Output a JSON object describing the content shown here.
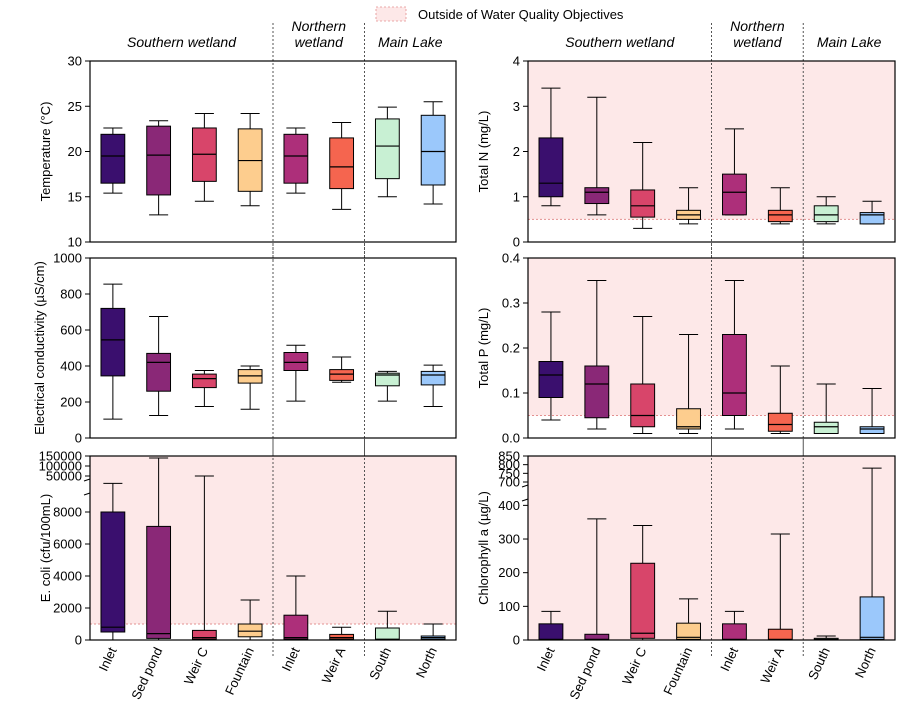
{
  "legend": {
    "label": "Outside of Water Quality Objectives",
    "color": "#fde8e8",
    "border": "#e39090"
  },
  "groups": [
    {
      "key": "southern",
      "label": "Southern wetland"
    },
    {
      "key": "northern",
      "label": "Northern wetland"
    },
    {
      "key": "main",
      "label": "Main Lake"
    }
  ],
  "sites": [
    "Inlet",
    "Sed pond",
    "Weir C",
    "Fountain",
    "Inlet",
    "Weir A",
    "South",
    "North"
  ],
  "site_colors": [
    "#3a0f6e",
    "#8a2877",
    "#d8456a",
    "#fdcd8e",
    "#ad2f7a",
    "#f5654f",
    "#c8f0d3",
    "#9bc8fb"
  ],
  "chart_data": [
    {
      "id": "temperature",
      "type": "box",
      "ylabel": "Temperature (°C)",
      "ylim": [
        10,
        30
      ],
      "ticks": [
        10,
        15,
        20,
        25,
        30
      ],
      "objective": null,
      "boxes": [
        {
          "min": 15.4,
          "q1": 16.5,
          "median": 19.5,
          "q3": 21.9,
          "max": 22.6
        },
        {
          "min": 13.0,
          "q1": 15.2,
          "median": 19.6,
          "q3": 22.8,
          "max": 23.4
        },
        {
          "min": 14.5,
          "q1": 16.7,
          "median": 19.7,
          "q3": 22.6,
          "max": 24.2
        },
        {
          "min": 14.0,
          "q1": 15.6,
          "median": 19.0,
          "q3": 22.5,
          "max": 24.2
        },
        {
          "min": 15.4,
          "q1": 16.5,
          "median": 19.5,
          "q3": 21.9,
          "max": 22.6
        },
        {
          "min": 13.6,
          "q1": 15.9,
          "median": 18.3,
          "q3": 21.5,
          "max": 23.2
        },
        {
          "min": 15.0,
          "q1": 17.0,
          "median": 20.6,
          "q3": 23.6,
          "max": 24.9
        },
        {
          "min": 14.2,
          "q1": 16.3,
          "median": 20.0,
          "q3": 24.0,
          "max": 25.5
        }
      ]
    },
    {
      "id": "total_n",
      "type": "box",
      "ylabel": "Total N (mg/L)",
      "ylim": [
        0,
        4
      ],
      "ticks": [
        0,
        1,
        2,
        3,
        4
      ],
      "objective": 0.5,
      "boxes": [
        {
          "min": 0.8,
          "q1": 1.0,
          "median": 1.3,
          "q3": 2.3,
          "max": 3.4
        },
        {
          "min": 0.6,
          "q1": 0.85,
          "median": 1.1,
          "q3": 1.2,
          "max": 3.2
        },
        {
          "min": 0.3,
          "q1": 0.55,
          "median": 0.8,
          "q3": 1.15,
          "max": 2.2
        },
        {
          "min": 0.4,
          "q1": 0.5,
          "median": 0.6,
          "q3": 0.7,
          "max": 1.2
        },
        {
          "min": 0.6,
          "q1": 0.6,
          "median": 1.1,
          "q3": 1.5,
          "max": 2.5
        },
        {
          "min": 0.4,
          "q1": 0.45,
          "median": 0.6,
          "q3": 0.7,
          "max": 1.2
        },
        {
          "min": 0.4,
          "q1": 0.45,
          "median": 0.6,
          "q3": 0.8,
          "max": 1.0
        },
        {
          "min": 0.4,
          "q1": 0.4,
          "median": 0.6,
          "q3": 0.65,
          "max": 0.9
        }
      ]
    },
    {
      "id": "conductivity",
      "type": "box",
      "ylabel": "Electrical conductivity (µS/cm)",
      "ylim": [
        0,
        1000
      ],
      "ticks": [
        0,
        200,
        400,
        600,
        800,
        1000
      ],
      "objective": null,
      "boxes": [
        {
          "min": 105,
          "q1": 345,
          "median": 545,
          "q3": 720,
          "max": 855
        },
        {
          "min": 125,
          "q1": 260,
          "median": 420,
          "q3": 470,
          "max": 675
        },
        {
          "min": 175,
          "q1": 280,
          "median": 330,
          "q3": 355,
          "max": 375
        },
        {
          "min": 160,
          "q1": 305,
          "median": 345,
          "q3": 380,
          "max": 400
        },
        {
          "min": 205,
          "q1": 375,
          "median": 420,
          "q3": 475,
          "max": 515
        },
        {
          "min": 310,
          "q1": 320,
          "median": 355,
          "q3": 380,
          "max": 450
        },
        {
          "min": 205,
          "q1": 290,
          "median": 350,
          "q3": 360,
          "max": 370
        },
        {
          "min": 175,
          "q1": 295,
          "median": 350,
          "q3": 370,
          "max": 405
        }
      ]
    },
    {
      "id": "total_p",
      "type": "box",
      "ylabel": "Total P (mg/L)",
      "ylim": [
        0,
        0.4
      ],
      "ticks": [
        0.0,
        0.1,
        0.2,
        0.3,
        0.4
      ],
      "objective": 0.05,
      "boxes": [
        {
          "min": 0.04,
          "q1": 0.09,
          "median": 0.14,
          "q3": 0.17,
          "max": 0.28
        },
        {
          "min": 0.02,
          "q1": 0.045,
          "median": 0.12,
          "q3": 0.16,
          "max": 0.35
        },
        {
          "min": 0.01,
          "q1": 0.025,
          "median": 0.05,
          "q3": 0.12,
          "max": 0.27
        },
        {
          "min": 0.01,
          "q1": 0.02,
          "median": 0.025,
          "q3": 0.065,
          "max": 0.23
        },
        {
          "min": 0.02,
          "q1": 0.05,
          "median": 0.1,
          "q3": 0.23,
          "max": 0.35
        },
        {
          "min": 0.01,
          "q1": 0.015,
          "median": 0.03,
          "q3": 0.055,
          "max": 0.16
        },
        {
          "min": 0.01,
          "q1": 0.01,
          "median": 0.025,
          "q3": 0.035,
          "max": 0.12
        },
        {
          "min": 0.01,
          "q1": 0.01,
          "median": 0.02,
          "q3": 0.025,
          "max": 0.11
        }
      ]
    },
    {
      "id": "ecoli",
      "type": "box",
      "ylabel": "E. coli (cfu/100mL)",
      "ylim": [
        0,
        150000
      ],
      "objective": 1000,
      "break": {
        "lower": [
          0,
          9000
        ],
        "upper_ticks": [
          50000,
          100000,
          150000
        ]
      },
      "ticks": [
        0,
        2000,
        4000,
        6000,
        8000,
        50000,
        100000,
        150000
      ],
      "boxes": [
        {
          "min": 0,
          "q1": 500,
          "median": 800,
          "q3": 8000,
          "max": 35000
        },
        {
          "min": 0,
          "q1": 100,
          "median": 400,
          "q3": 7100,
          "max": 140000
        },
        {
          "min": 0,
          "q1": 50,
          "median": 150,
          "q3": 600,
          "max": 50000
        },
        {
          "min": 0,
          "q1": 200,
          "median": 550,
          "q3": 1000,
          "max": 2500
        },
        {
          "min": 0,
          "q1": 50,
          "median": 150,
          "q3": 1550,
          "max": 4000
        },
        {
          "min": 0,
          "q1": 50,
          "median": 150,
          "q3": 350,
          "max": 800
        },
        {
          "min": 0,
          "q1": 0,
          "median": 50,
          "q3": 750,
          "max": 1800
        },
        {
          "min": 0,
          "q1": 50,
          "median": 150,
          "q3": 250,
          "max": 1000
        }
      ]
    },
    {
      "id": "chlorophyll",
      "type": "box",
      "ylabel": "Chlorophyll a (µg/L)",
      "ylim": [
        0,
        850
      ],
      "objective": 0,
      "break": {
        "lower": [
          0,
          410
        ],
        "upper_ticks": [
          700,
          750,
          800,
          850
        ]
      },
      "ticks": [
        0,
        100,
        200,
        300,
        400,
        700,
        750,
        800,
        850
      ],
      "boxes": [
        {
          "min": 0,
          "q1": 0,
          "median": 2,
          "q3": 48,
          "max": 85
        },
        {
          "min": 0,
          "q1": 0,
          "median": 2,
          "q3": 17,
          "max": 360
        },
        {
          "min": 0,
          "q1": 5,
          "median": 20,
          "q3": 228,
          "max": 340
        },
        {
          "min": 0,
          "q1": 2,
          "median": 8,
          "q3": 50,
          "max": 122
        },
        {
          "min": 0,
          "q1": 0,
          "median": 2,
          "q3": 48,
          "max": 85
        },
        {
          "min": 0,
          "q1": 0,
          "median": 2,
          "q3": 32,
          "max": 315
        },
        {
          "min": 0,
          "q1": 0,
          "median": 2,
          "q3": 5,
          "max": 12
        },
        {
          "min": 0,
          "q1": 2,
          "median": 8,
          "q3": 128,
          "max": 780
        }
      ]
    }
  ]
}
